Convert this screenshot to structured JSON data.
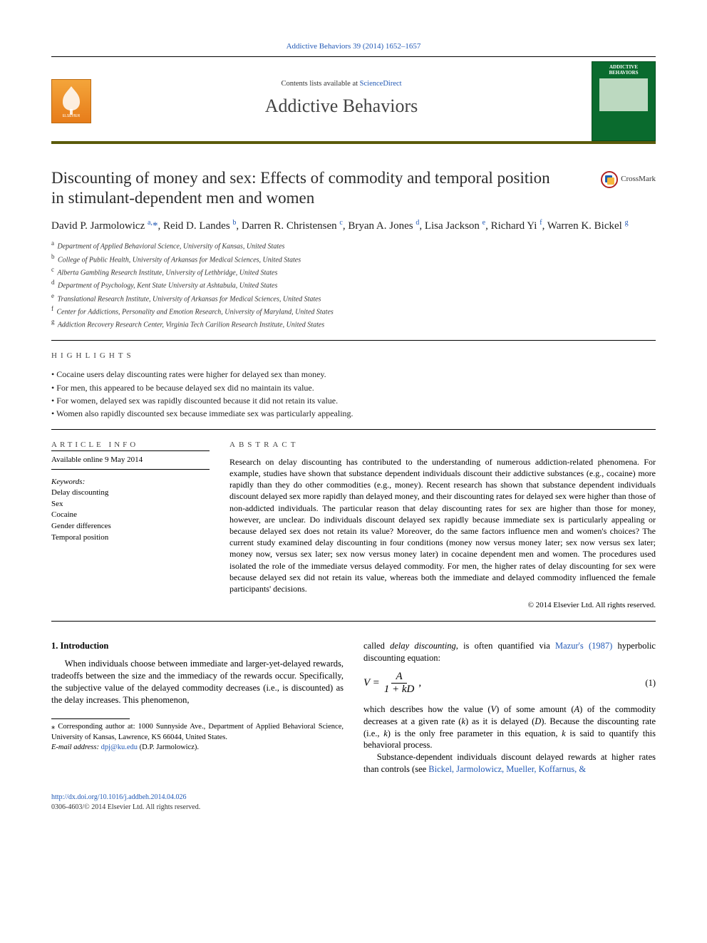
{
  "header": {
    "journal_ref": "Addictive Behaviors 39 (2014) 1652–1657",
    "contents_prefix": "Contents lists available at ",
    "contents_link": "ScienceDirect",
    "journal_name": "Addictive Behaviors",
    "publisher_logo_alt": "ELSEVIER",
    "cover_title": "ADDICTIVE BEHAVIORS"
  },
  "crossmark": {
    "label": "CrossMark"
  },
  "title": "Discounting of money and sex: Effects of commodity and temporal position in stimulant-dependent men and women",
  "authors_html": "David P. Jarmolowicz <sup>a,</sup><span class='star'>*</span>, Reid D. Landes <sup>b</sup>, Darren R. Christensen <sup>c</sup>, Bryan A. Jones <sup>d</sup>, Lisa Jackson <sup>e</sup>, Richard Yi <sup>f</sup>, Warren K. Bickel <sup>g</sup>",
  "affiliations": [
    {
      "key": "a",
      "text": "Department of Applied Behavioral Science, University of Kansas, United States"
    },
    {
      "key": "b",
      "text": "College of Public Health, University of Arkansas for Medical Sciences, United States"
    },
    {
      "key": "c",
      "text": "Alberta Gambling Research Institute, University of Lethbridge, United States"
    },
    {
      "key": "d",
      "text": "Department of Psychology, Kent State University at Ashtabula, United States"
    },
    {
      "key": "e",
      "text": "Translational Research Institute, University of Arkansas for Medical Sciences, United States"
    },
    {
      "key": "f",
      "text": "Center for Addictions, Personality and Emotion Research, University of Maryland, United States"
    },
    {
      "key": "g",
      "text": "Addiction Recovery Research Center, Virginia Tech Carilion Research Institute, United States"
    }
  ],
  "highlights": {
    "label": "HIGHLIGHTS",
    "items": [
      "Cocaine users delay discounting rates were higher for delayed sex than money.",
      "For men, this appeared to be because delayed sex did no maintain its value.",
      "For women, delayed sex was rapidly discounted because it did not retain its value.",
      "Women also rapidly discounted sex because immediate sex was particularly appealing."
    ]
  },
  "article_info": {
    "label": "article info",
    "available": "Available online 9 May 2014",
    "keywords_label": "Keywords:",
    "keywords": [
      "Delay discounting",
      "Sex",
      "Cocaine",
      "Gender differences",
      "Temporal position"
    ]
  },
  "abstract": {
    "label": "ABSTRACT",
    "text": "Research on delay discounting has contributed to the understanding of numerous addiction-related phenomena. For example, studies have shown that substance dependent individuals discount their addictive substances (e.g., cocaine) more rapidly than they do other commodities (e.g., money). Recent research has shown that substance dependent individuals discount delayed sex more rapidly than delayed money, and their discounting rates for delayed sex were higher than those of non-addicted individuals. The particular reason that delay discounting rates for sex are higher than those for money, however, are unclear. Do individuals discount delayed sex rapidly because immediate sex is particularly appealing or because delayed sex does not retain its value? Moreover, do the same factors influence men and women's choices? The current study examined delay discounting in four conditions (money now versus money later; sex now versus sex later; money now, versus sex later; sex now versus money later) in cocaine dependent men and women. The procedures used isolated the role of the immediate versus delayed commodity. For men, the higher rates of delay discounting for sex were because delayed sex did not retain its value, whereas both the immediate and delayed commodity influenced the female participants' decisions.",
    "copyright": "© 2014 Elsevier Ltd. All rights reserved."
  },
  "intro": {
    "heading": "1. Introduction",
    "para_left": "When individuals choose between immediate and larger-yet-delayed rewards, tradeoffs between the size and the immediacy of the rewards occur. Specifically, the subjective value of the delayed commodity decreases (i.e., is discounted) as the delay increases. This phenomenon,",
    "para_right_pre": "called ",
    "para_right_em": "delay discounting",
    "para_right_mid": ", is often quantified via ",
    "para_right_link": "Mazur's (1987)",
    "para_right_post": " hyperbolic discounting equation:",
    "eqn_lhs": "V =",
    "eqn_num": "A",
    "eqn_den": "1 + kD",
    "eqn_tail": ",",
    "eqn_number": "(1)",
    "para_right_2_a": "which describes how the value (",
    "para_right_2_b": ") of some amount (",
    "para_right_2_c": ") of the commodity decreases at a given rate (",
    "para_right_2_d": ") as it is delayed (",
    "para_right_2_e": "). Because the discounting rate (i.e., ",
    "para_right_2_f": ") is the only free parameter in this equation, ",
    "para_right_2_g": " is said to quantify this behavioral process.",
    "var_V": "V",
    "var_A": "A",
    "var_k": "k",
    "var_D": "D",
    "para_right_3_a": "Substance-dependent individuals discount delayed rewards at higher rates than controls (see ",
    "para_right_3_link": "Bickel, Jarmolowicz, Mueller, Koffarnus, &"
  },
  "footnotes": {
    "corr_label": "⁎ Corresponding author at: 1000 Sunnyside Ave., Department of Applied Behavioral Science, University of Kansas, Lawrence, KS 66044, United States.",
    "email_label": "E-mail address:",
    "email": "dpj@ku.edu",
    "email_person": "(D.P. Jarmolowicz)."
  },
  "footer": {
    "doi": "http://dx.doi.org/10.1016/j.addbeh.2014.04.026",
    "issn_line": "0306-4603/© 2014 Elsevier Ltd. All rights reserved."
  },
  "colors": {
    "link": "#2259b5",
    "band_border": "#5a5a0a",
    "logo_bg_top": "#f4a53a",
    "logo_bg_bottom": "#e77c1a",
    "cover_bg": "#0a6b2e"
  }
}
